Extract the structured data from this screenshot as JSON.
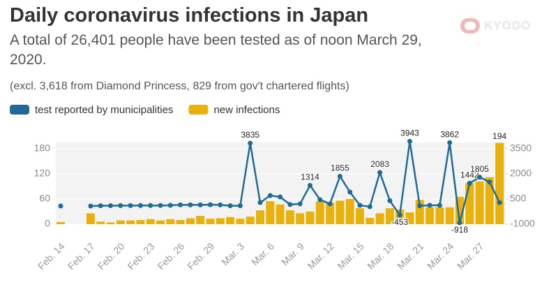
{
  "logo": "KYODO",
  "chart_data": {
    "type": "bar-line",
    "title": "Daily coronavirus infections in Japan",
    "subtitle": "A total of 26,401 people have been tested as of noon March 29, 2020.",
    "note": "(excl. 3,618 from Diamond Princess, 829 from gov't chartered flights)",
    "categories": [
      "Feb. 14",
      null,
      null,
      "Feb. 17",
      null,
      null,
      "Feb. 20",
      null,
      null,
      "Feb. 23",
      null,
      null,
      "Feb. 26",
      null,
      null,
      "Feb. 29",
      null,
      null,
      "Mar. 3",
      null,
      null,
      "Mar. 6",
      null,
      null,
      "Mar. 9",
      null,
      null,
      "Mar. 12",
      null,
      null,
      "Mar. 15",
      null,
      null,
      "Mar. 18",
      null,
      null,
      "Mar. 21",
      null,
      null,
      "Mar. 24",
      null,
      null,
      "Mar. 27",
      null,
      null
    ],
    "series": [
      {
        "name": "test reported by municipalities",
        "color": "#1f6b96",
        "axis": "y2",
        "kind": "line",
        "values": [
          83,
          null,
          null,
          83,
          100,
          104,
          108,
          108,
          112,
          115,
          117,
          125,
          150,
          150,
          150,
          160,
          150,
          100,
          100,
          3835,
          290,
          708,
          625,
          170,
          210,
          1314,
          460,
          210,
          1855,
          917,
          125,
          42,
          2083,
          400,
          -453,
          3943,
          100,
          125,
          125,
          3862,
          -918,
          1442,
          1805,
          1514,
          290
        ],
        "value_labels": [
          null,
          null,
          null,
          null,
          null,
          null,
          null,
          null,
          null,
          null,
          null,
          null,
          null,
          null,
          null,
          null,
          null,
          null,
          null,
          "3835",
          null,
          null,
          null,
          null,
          null,
          "1314",
          null,
          null,
          "1855",
          null,
          null,
          null,
          "2083",
          null,
          "-453",
          "3943",
          null,
          null,
          null,
          "3862",
          "-918",
          "1442",
          "1805",
          null,
          null
        ]
      },
      {
        "name": "new infections",
        "color": "#e8b10c",
        "axis": "y",
        "kind": "bar",
        "values": [
          5,
          0,
          0,
          26,
          6,
          4,
          9,
          9,
          10,
          12,
          9,
          12,
          10,
          14,
          20,
          13,
          14,
          17,
          13,
          18,
          33,
          55,
          47,
          33,
          26,
          30,
          54,
          52,
          56,
          60,
          38,
          15,
          26,
          38,
          35,
          28,
          58,
          40,
          40,
          40,
          65,
          98,
          102,
          112,
          194
        ],
        "value_labels": [
          null,
          null,
          null,
          null,
          null,
          null,
          null,
          null,
          null,
          null,
          null,
          null,
          null,
          null,
          null,
          null,
          null,
          null,
          null,
          null,
          null,
          null,
          null,
          null,
          null,
          null,
          null,
          null,
          null,
          null,
          null,
          null,
          null,
          null,
          null,
          null,
          null,
          null,
          null,
          null,
          null,
          null,
          null,
          null,
          "194"
        ]
      }
    ],
    "ylim": [
      0,
      195
    ],
    "yticks": [
      0,
      60,
      120,
      180
    ],
    "y2lim": [
      -1000,
      3875
    ],
    "y2ticks": [
      -1000,
      500,
      2000,
      3500
    ],
    "grid": true
  }
}
